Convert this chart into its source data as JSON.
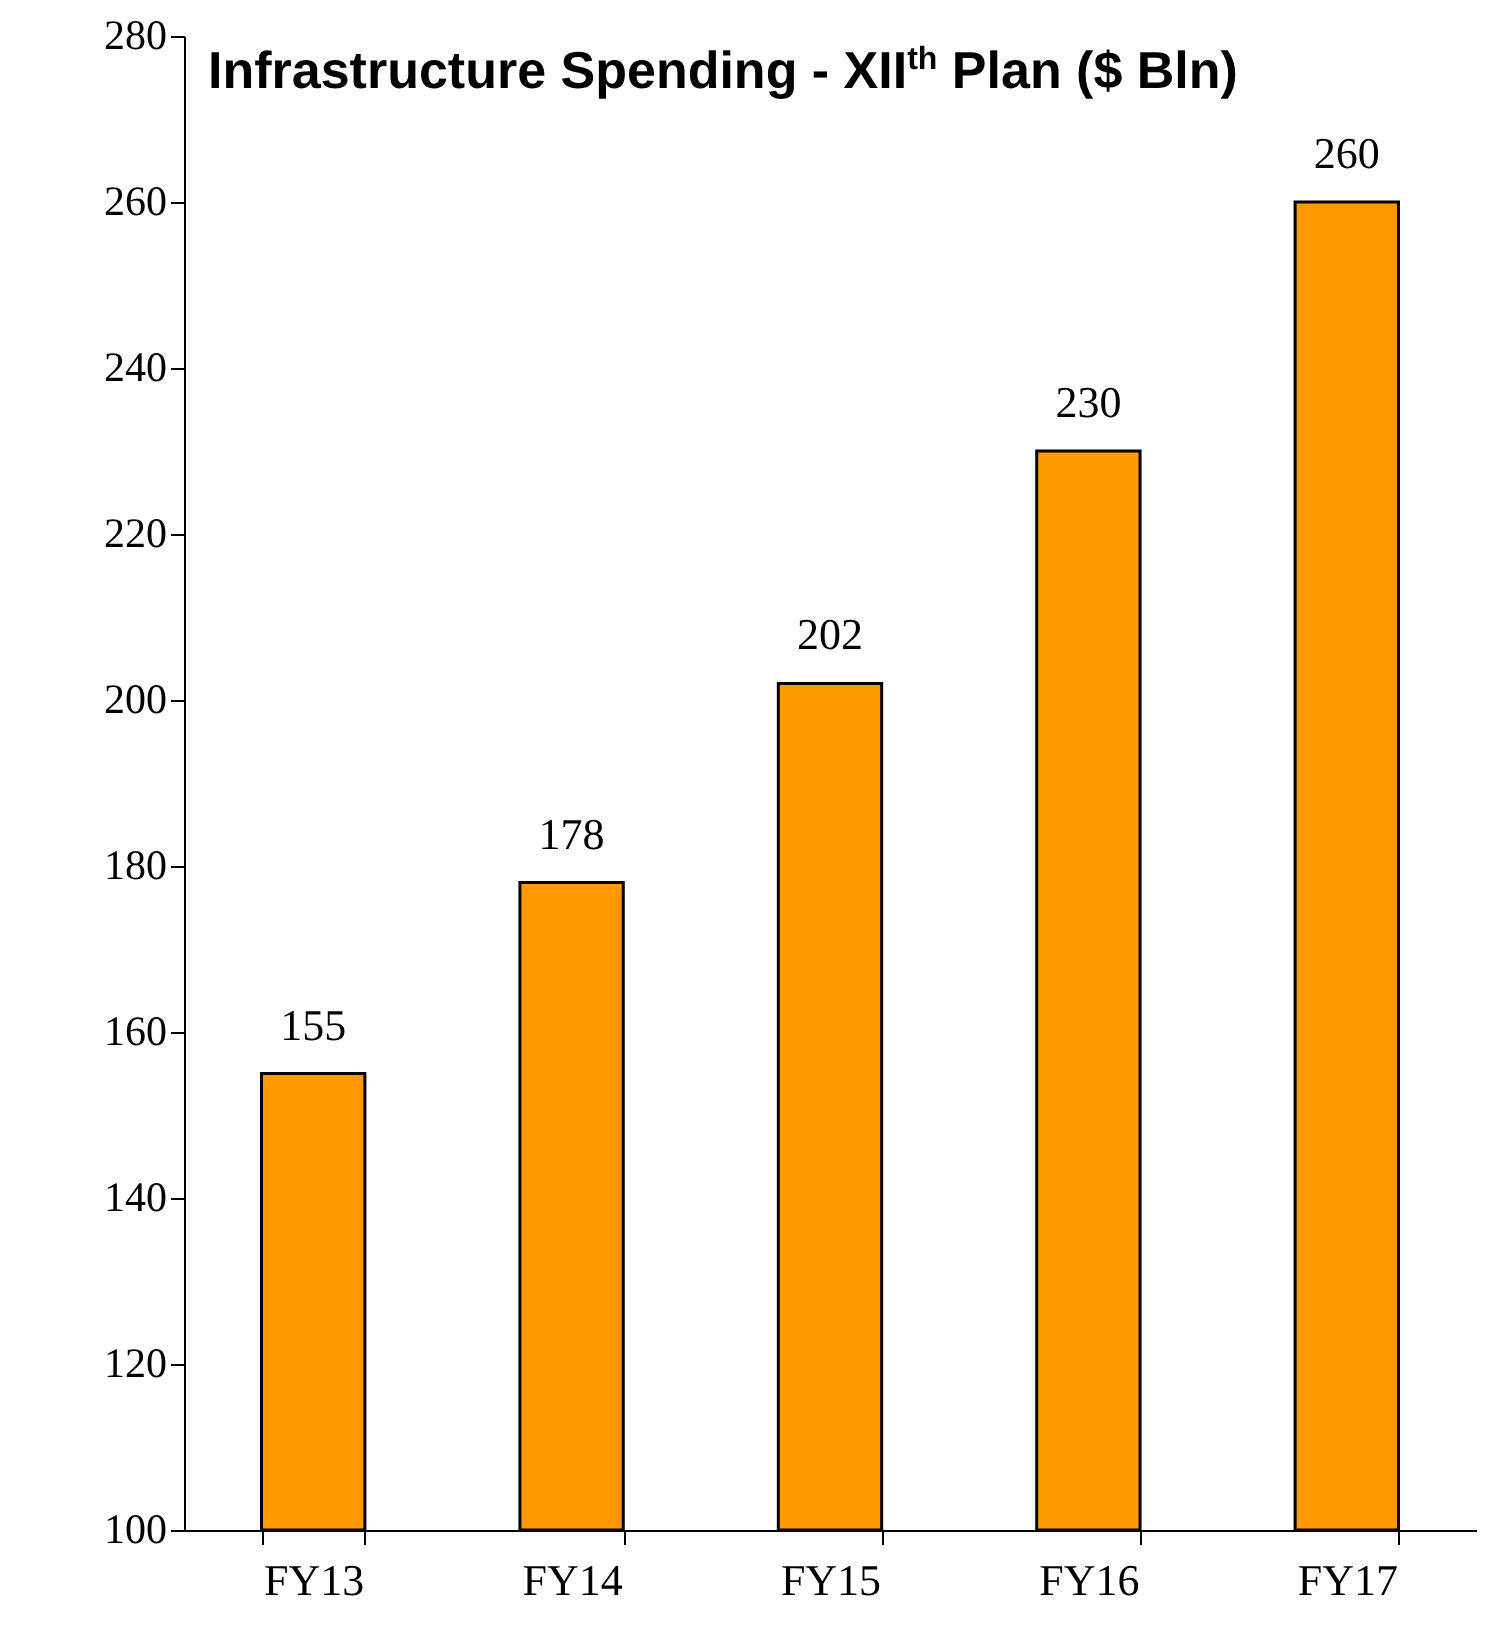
{
  "chart_data": {
    "type": "bar",
    "title": "Infrastructure Spending - XII$^{th}$ Plan ($ Bln)",
    "categories": [
      "FY13",
      "FY14",
      "FY15",
      "FY16",
      "FY17"
    ],
    "values": [
      155,
      178,
      202,
      230,
      260
    ],
    "color": "#ff9900",
    "ylim": [
      100,
      280
    ],
    "yticks": [
      100,
      120,
      140,
      160,
      180,
      200,
      220,
      240,
      260,
      280
    ],
    "grid": false,
    "data_labels": true
  }
}
